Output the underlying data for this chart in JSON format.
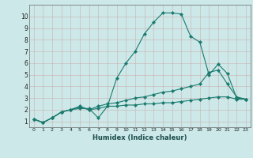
{
  "xlabel": "Humidex (Indice chaleur)",
  "xlim": [
    -0.5,
    23.5
  ],
  "ylim": [
    0.5,
    11.0
  ],
  "yticks": [
    1,
    2,
    3,
    4,
    5,
    6,
    7,
    8,
    9,
    10
  ],
  "xticks": [
    0,
    1,
    2,
    3,
    4,
    5,
    6,
    7,
    8,
    9,
    10,
    11,
    12,
    13,
    14,
    15,
    16,
    17,
    18,
    19,
    20,
    21,
    22,
    23
  ],
  "bg_color": "#cce8e8",
  "grid_color": "#b8b8b8",
  "line_color": "#1a7a6e",
  "line1_x": [
    0,
    1,
    2,
    3,
    4,
    5,
    6,
    7,
    8,
    9,
    10,
    11,
    12,
    13,
    14,
    15,
    16,
    17,
    18,
    19,
    20,
    21,
    22,
    23
  ],
  "line1_y": [
    1.2,
    0.9,
    1.3,
    1.8,
    2.0,
    2.1,
    2.1,
    1.3,
    2.3,
    4.7,
    6.0,
    7.0,
    8.5,
    9.5,
    10.3,
    10.3,
    10.2,
    8.3,
    7.8,
    5.0,
    5.9,
    5.1,
    3.0,
    2.9
  ],
  "line2_x": [
    0,
    1,
    2,
    3,
    4,
    5,
    6,
    7,
    8,
    9,
    10,
    11,
    12,
    13,
    14,
    15,
    16,
    17,
    18,
    19,
    20,
    21,
    22,
    23
  ],
  "line2_y": [
    1.2,
    0.9,
    1.3,
    1.8,
    2.0,
    2.3,
    2.0,
    2.3,
    2.5,
    2.6,
    2.8,
    3.0,
    3.1,
    3.3,
    3.5,
    3.6,
    3.8,
    4.0,
    4.2,
    5.2,
    5.4,
    4.2,
    3.1,
    2.9
  ],
  "line3_x": [
    0,
    1,
    2,
    3,
    4,
    5,
    6,
    7,
    8,
    9,
    10,
    11,
    12,
    13,
    14,
    15,
    16,
    17,
    18,
    19,
    20,
    21,
    22,
    23
  ],
  "line3_y": [
    1.2,
    0.9,
    1.3,
    1.8,
    2.0,
    2.2,
    2.0,
    2.1,
    2.3,
    2.3,
    2.4,
    2.4,
    2.5,
    2.5,
    2.6,
    2.6,
    2.7,
    2.8,
    2.9,
    3.0,
    3.1,
    3.1,
    2.9,
    2.9
  ]
}
